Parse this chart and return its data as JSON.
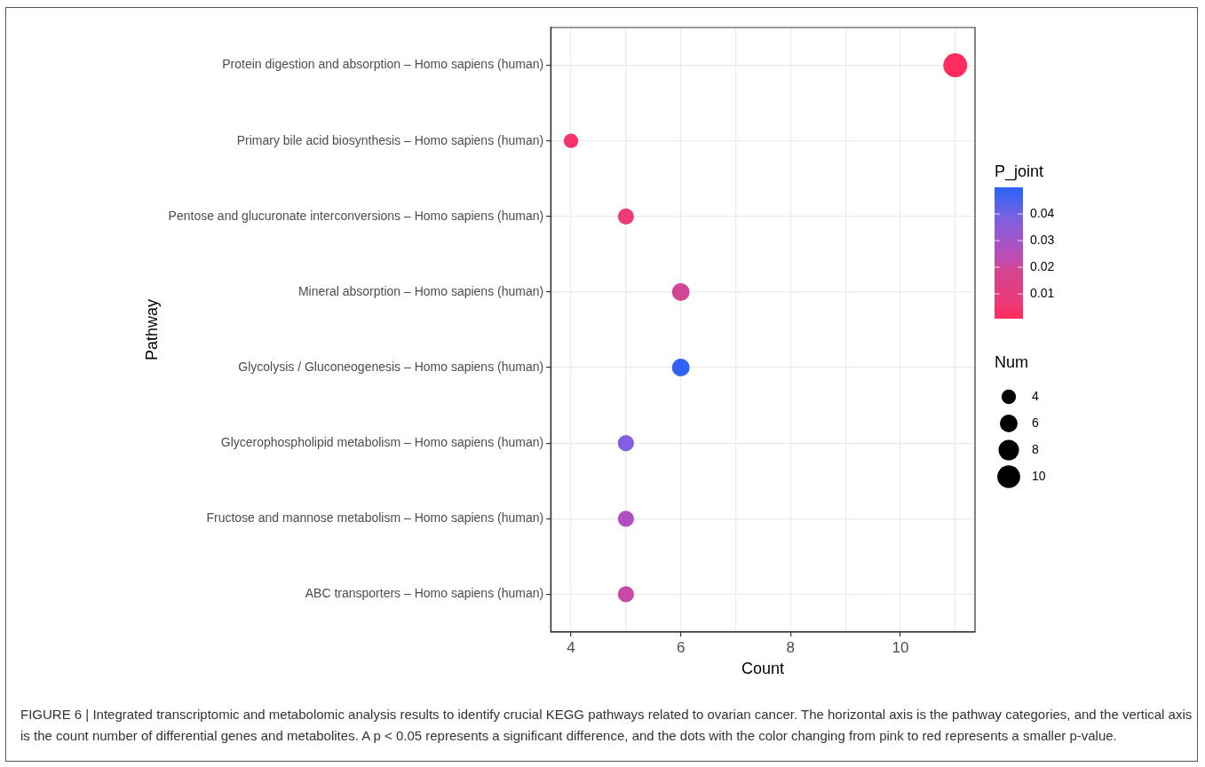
{
  "chart_data": {
    "type": "bubble",
    "orientation": "horizontal",
    "xlabel": "Count",
    "ylabel": "Pathway",
    "clabel": "P_joint",
    "legend_title": "Num",
    "grid": true,
    "categories": [
      "Protein digestion and absorption – Homo sapiens (human)",
      "Primary bile acid biosynthesis – Homo sapiens (human)",
      "Pentose and glucuronate interconversions – Homo sapiens (human)",
      "Mineral absorption – Homo sapiens (human)",
      "Glycolysis / Gluconeogenesis – Homo sapiens (human)",
      "Glycerophospholipid metabolism – Homo sapiens (human)",
      "Fructose and mannose metabolism – Homo sapiens (human)",
      "ABC transporters – Homo sapiens (human)"
    ],
    "values": [
      11,
      4,
      5,
      6,
      6,
      5,
      5,
      5
    ],
    "sizes": [
      11,
      4,
      5,
      6,
      6,
      5,
      5,
      5
    ],
    "size_legend": [
      4,
      6,
      8,
      10
    ],
    "cvalues": [
      0.001,
      0.004,
      0.006,
      0.02,
      0.049,
      0.038,
      0.027,
      0.021
    ],
    "colors": [
      "#ff2d5f",
      "#f7316a",
      "#ee3a76",
      "#d04594",
      "#2f63f5",
      "#8060e0",
      "#b050c0",
      "#c84aa5"
    ],
    "clim": [
      0.0007,
      0.05
    ],
    "cticks": [
      0.01,
      0.02,
      0.03,
      0.04
    ],
    "xlim": [
      3.63,
      11.36
    ],
    "xticks": [
      4,
      {
        "value": 5,
        "label": null
      },
      6,
      {
        "value": 7,
        "label": null
      },
      8,
      {
        "value": 9,
        "label": null
      },
      10,
      {
        "value": 11,
        "label": null
      }
    ],
    "annotations": [
      "FIGURE 6 | Integrated transcriptomic and metabolomic analysis results to identify crucial KEGG pathways related to ovarian cancer. The horizontal axis is the pathway categories, and the vertical axis is the count number of differential genes and metabolites. A p < 0.05 represents a significant difference, and the dots with the color changing from pink to red represents a smaller p-value."
    ]
  }
}
